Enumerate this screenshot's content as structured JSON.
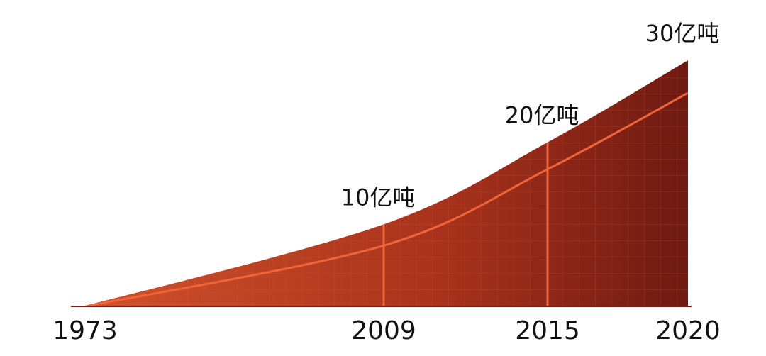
{
  "chart_data": {
    "type": "area",
    "categories": [
      "1973",
      "2009",
      "2015",
      "2020"
    ],
    "values": [
      0,
      10,
      20,
      30
    ],
    "value_labels": [
      null,
      "10亿吨",
      "20亿吨",
      "30亿吨"
    ],
    "ylim": [
      0,
      30
    ],
    "color": "#b8391f"
  }
}
